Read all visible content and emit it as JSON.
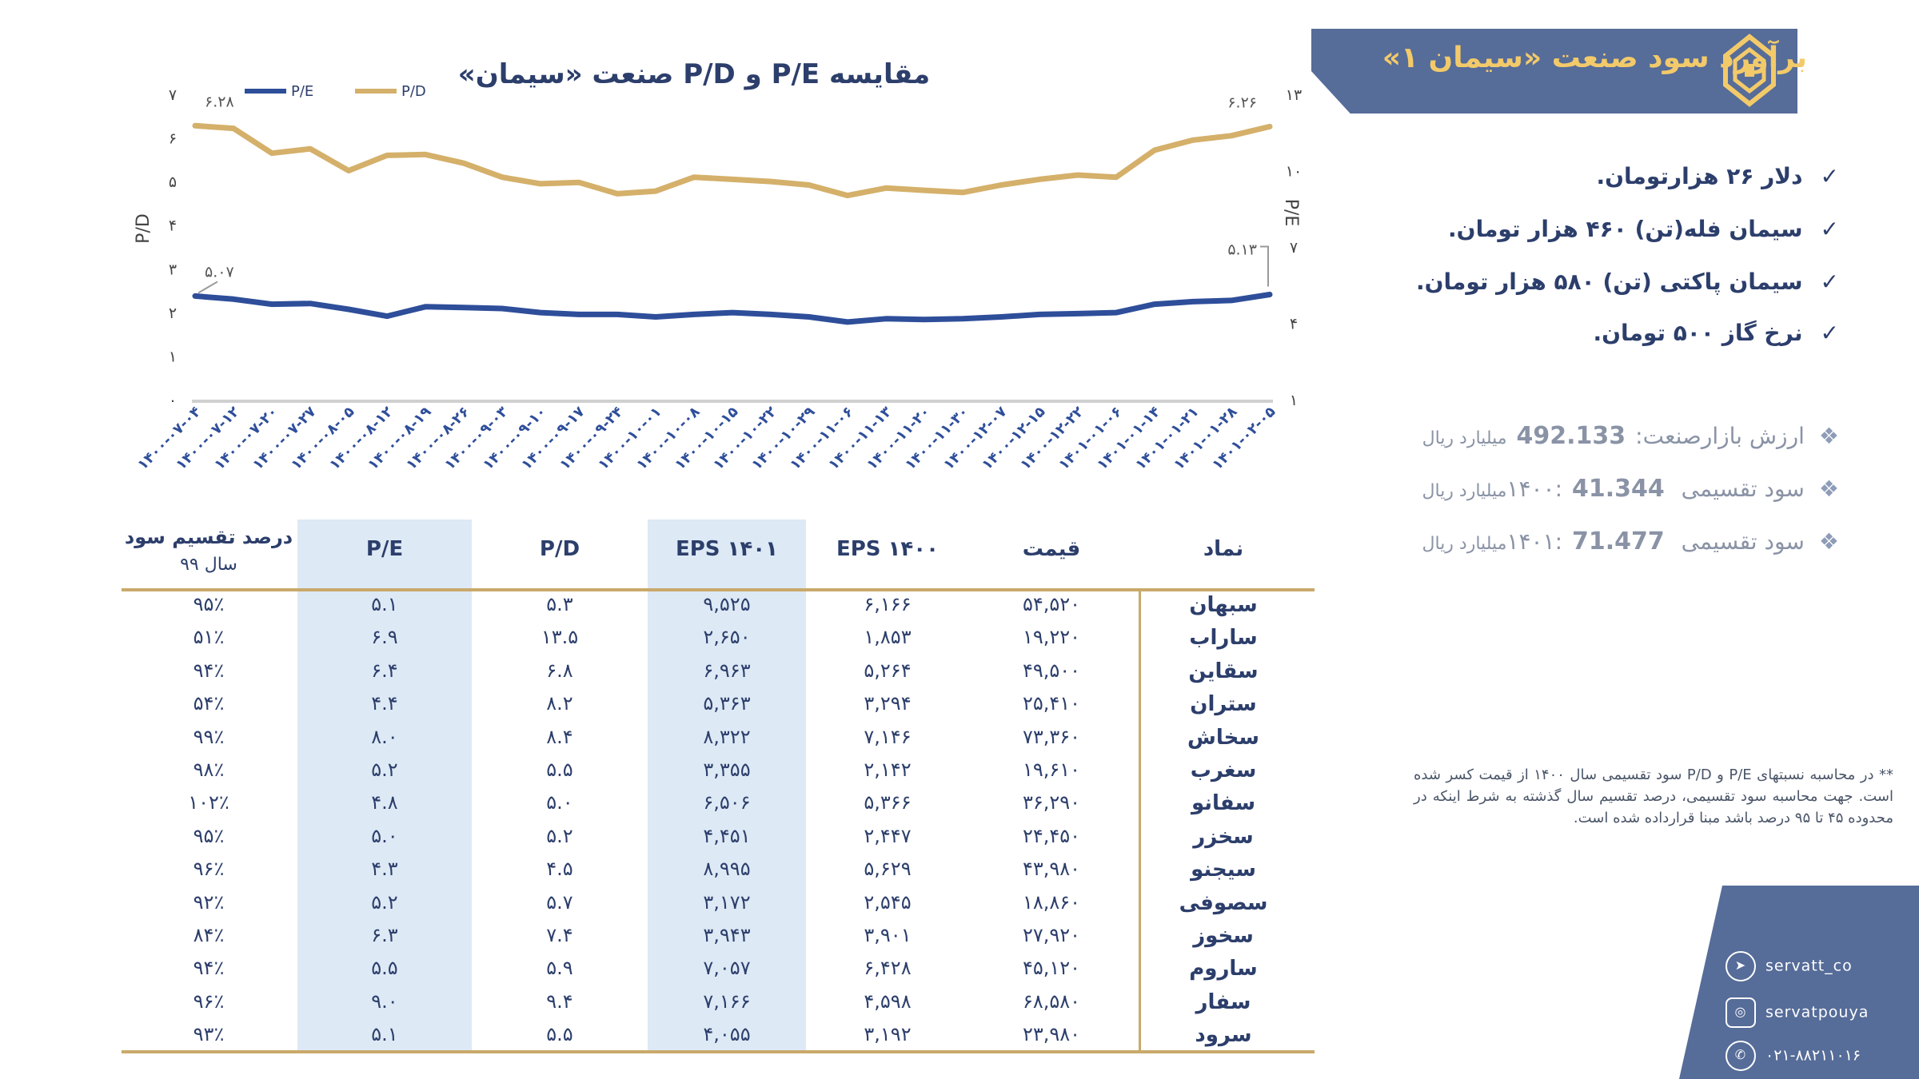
{
  "header": {
    "title": "برآورد سود صنعت «سیمان ۱»"
  },
  "bullets": [
    "دلار ۲۶ هزارتومان.",
    "سیمان فله(تن) ۴۶۰ هزار تومان.",
    "سیمان پاکتی (تن) ۵۸۰ هزار تومان.",
    "نرخ گاز ۵۰۰ تومان."
  ],
  "stats": [
    {
      "label": "ارزش بازارصنعت:",
      "value": "492.133",
      "unit": "میلیارد ریال"
    },
    {
      "label": "سود تقسیمی ۱۴۰۰:",
      "value": "41.344",
      "unit": "میلیارد ریال"
    },
    {
      "label": "سود تقسیمی ۱۴۰۱:",
      "value": "71.477",
      "unit": "میلیارد ریال"
    }
  ],
  "footnote": "** در محاسبه نسبتهای P/E و P/D سود تقسیمی سال ۱۴۰۰ از قیمت کسر شده است. جهت محاسبه سود تقسیمی، درصد تقسیم سال گذشته به شرط اینکه در محدوده ۴۵ تا ۹۵ درصد باشد مبنا قرارداده شده است.",
  "social": {
    "telegram": "servatt_co",
    "instagram": "servatpouya",
    "phone": "۰۲۱-۸۸۲۱۱۰۱۶"
  },
  "colors": {
    "pe": "#2e4e9a",
    "pd": "#d4b06a",
    "banner": "#566c99",
    "title_gold": "#f3ca6a",
    "highlight": "#dde9f5"
  },
  "chart_data": {
    "type": "line",
    "title": "مقایسه P/E و P/D صنعت «سیمان»",
    "xlabel": "",
    "ylabel_left": "P/D",
    "ylabel_right": "P/E",
    "left_ticks": [
      "۰",
      "۱",
      "۲",
      "۳",
      "۴",
      "۵",
      "۶",
      "۷"
    ],
    "right_ticks": [
      "۱",
      "۴",
      "۷",
      "۱۰",
      "۱۳"
    ],
    "ylim_left": [
      0,
      7
    ],
    "ylim_right": [
      1,
      13
    ],
    "grid": false,
    "legend_position": "top-left",
    "categories": [
      "۱۴۰۰-۰۷-۰۴",
      "۱۴۰۰-۰۷-۱۲",
      "۱۴۰۰-۰۷-۲۰",
      "۱۴۰۰-۰۷-۲۷",
      "۱۴۰۰-۰۸-۰۵",
      "۱۴۰۰-۰۸-۱۲",
      "۱۴۰۰-۰۸-۱۹",
      "۱۴۰۰-۰۸-۲۶",
      "۱۴۰۰-۰۹-۰۳",
      "۱۴۰۰-۰۹-۱۰",
      "۱۴۰۰-۰۹-۱۷",
      "۱۴۰۰-۰۹-۲۴",
      "۱۴۰۰-۱۰-۰۱",
      "۱۴۰۰-۱۰-۰۸",
      "۱۴۰۰-۱۰-۱۵",
      "۱۴۰۰-۱۰-۲۲",
      "۱۴۰۰-۱۰-۲۹",
      "۱۴۰۰-۱۱-۰۶",
      "۱۴۰۰-۱۱-۱۳",
      "۱۴۰۰-۱۱-۲۰",
      "۱۴۰۰-۱۱-۳۰",
      "۱۴۰۰-۱۲-۰۷",
      "۱۴۰۰-۱۲-۱۵",
      "۱۴۰۰-۱۲-۲۲",
      "۱۴۰۱-۰۱-۰۶",
      "۱۴۰۱-۰۱-۱۴",
      "۱۴۰۱-۰۱-۲۱",
      "۱۴۰۱-۰۱-۲۸",
      "۱۴۰۱-۰۲-۰۵"
    ],
    "series": [
      {
        "name": "P/E",
        "axis": "right",
        "values": [
          5.07,
          4.95,
          4.75,
          4.78,
          4.55,
          4.28,
          4.65,
          4.62,
          4.58,
          4.42,
          4.35,
          4.35,
          4.25,
          4.35,
          4.42,
          4.35,
          4.25,
          4.05,
          4.18,
          4.15,
          4.18,
          4.25,
          4.35,
          4.38,
          4.42,
          4.75,
          4.85,
          4.9,
          5.13
        ],
        "first_label": "۵.۰۷",
        "last_label": "۵.۱۳"
      },
      {
        "name": "P/D",
        "axis": "left",
        "values": [
          6.28,
          6.22,
          5.65,
          5.75,
          5.25,
          5.6,
          5.62,
          5.42,
          5.1,
          4.95,
          4.98,
          4.72,
          4.78,
          5.1,
          5.05,
          5.0,
          4.92,
          4.68,
          4.85,
          4.8,
          4.75,
          4.92,
          5.05,
          5.15,
          5.1,
          5.72,
          5.95,
          6.05,
          6.26
        ],
        "first_label": "۶.۲۸",
        "last_label": "۶.۲۶"
      }
    ]
  },
  "table": {
    "headers": {
      "symbol": "نماد",
      "price": "قیمت",
      "eps1400": "EPS ۱۴۰۰",
      "eps1401": "EPS ۱۴۰۱",
      "pd": "P/D",
      "pe": "P/E",
      "payout": "درصد تقسیم سود",
      "payout_sub": "سال ۹۹"
    },
    "rows": [
      {
        "symbol": "سبهان",
        "price": "۵۴,۵۲۰",
        "eps1400": "۶,۱۶۶",
        "eps1401": "۹,۵۲۵",
        "pd": "۵.۳",
        "pe": "۵.۱",
        "payout": "۹۵٪"
      },
      {
        "symbol": "ساراب",
        "price": "۱۹,۲۲۰",
        "eps1400": "۱,۸۵۳",
        "eps1401": "۲,۶۵۰",
        "pd": "۱۳.۵",
        "pe": "۶.۹",
        "payout": "۵۱٪"
      },
      {
        "symbol": "سقاین",
        "price": "۴۹,۵۰۰",
        "eps1400": "۵,۲۶۴",
        "eps1401": "۶,۹۶۳",
        "pd": "۶.۸",
        "pe": "۶.۴",
        "payout": "۹۴٪"
      },
      {
        "symbol": "ستران",
        "price": "۲۵,۴۱۰",
        "eps1400": "۳,۲۹۴",
        "eps1401": "۵,۳۶۳",
        "pd": "۸.۲",
        "pe": "۴.۴",
        "payout": "۵۴٪"
      },
      {
        "symbol": "سخاش",
        "price": "۷۳,۳۶۰",
        "eps1400": "۷,۱۴۶",
        "eps1401": "۸,۳۲۲",
        "pd": "۸.۴",
        "pe": "۸.۰",
        "payout": "۹۹٪"
      },
      {
        "symbol": "سغرب",
        "price": "۱۹,۶۱۰",
        "eps1400": "۲,۱۴۲",
        "eps1401": "۳,۳۵۵",
        "pd": "۵.۵",
        "pe": "۵.۲",
        "payout": "۹۸٪"
      },
      {
        "symbol": "سفانو",
        "price": "۳۶,۲۹۰",
        "eps1400": "۵,۳۶۶",
        "eps1401": "۶,۵۰۶",
        "pd": "۵.۰",
        "pe": "۴.۸",
        "payout": "۱۰۲٪"
      },
      {
        "symbol": "سخزر",
        "price": "۲۴,۴۵۰",
        "eps1400": "۲,۴۴۷",
        "eps1401": "۴,۴۵۱",
        "pd": "۵.۲",
        "pe": "۵.۰",
        "payout": "۹۵٪"
      },
      {
        "symbol": "سیجنو",
        "price": "۴۳,۹۸۰",
        "eps1400": "۵,۶۲۹",
        "eps1401": "۸,۹۹۵",
        "pd": "۴.۵",
        "pe": "۴.۳",
        "payout": "۹۶٪"
      },
      {
        "symbol": "سصوفی",
        "price": "۱۸,۸۶۰",
        "eps1400": "۲,۵۴۵",
        "eps1401": "۳,۱۷۲",
        "pd": "۵.۷",
        "pe": "۵.۲",
        "payout": "۹۲٪"
      },
      {
        "symbol": "سخوز",
        "price": "۲۷,۹۲۰",
        "eps1400": "۳,۹۰۱",
        "eps1401": "۳,۹۴۳",
        "pd": "۷.۴",
        "pe": "۶.۳",
        "payout": "۸۴٪"
      },
      {
        "symbol": "ساروم",
        "price": "۴۵,۱۲۰",
        "eps1400": "۶,۴۲۸",
        "eps1401": "۷,۰۵۷",
        "pd": "۵.۹",
        "pe": "۵.۵",
        "payout": "۹۴٪"
      },
      {
        "symbol": "سفار",
        "price": "۶۸,۵۸۰",
        "eps1400": "۴,۵۹۸",
        "eps1401": "۷,۱۶۶",
        "pd": "۹.۴",
        "pe": "۹.۰",
        "payout": "۹۶٪"
      },
      {
        "symbol": "سرود",
        "price": "۲۳,۹۸۰",
        "eps1400": "۳,۱۹۲",
        "eps1401": "۴,۰۵۵",
        "pd": "۵.۵",
        "pe": "۵.۱",
        "payout": "۹۳٪"
      }
    ]
  }
}
